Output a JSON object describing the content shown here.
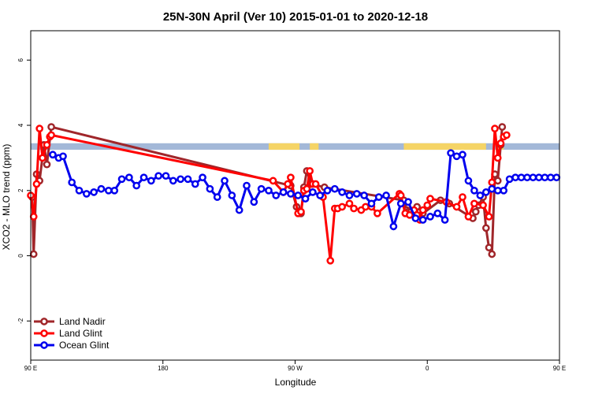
{
  "chart_data": {
    "type": "line",
    "title": "25N-30N April (Ver 10)   2015-01-01 to 2020-12-18",
    "xlabel": "Longitude",
    "ylabel": "XCO2 - MLO trend (ppm)",
    "xlim": [
      90,
      450
    ],
    "ylim": [
      -3.2,
      6.9
    ],
    "x_ticks": [
      {
        "value": 90,
        "label": "90 E"
      },
      {
        "value": 180,
        "label": "180"
      },
      {
        "value": 270,
        "label": "90 W"
      },
      {
        "value": 360,
        "label": "0"
      },
      {
        "value": 450,
        "label": "90 E"
      },
      {
        "value": 540,
        "label": "180"
      }
    ],
    "y_ticks": [
      {
        "value": -2,
        "label": "-2"
      },
      {
        "value": 0,
        "label": "0"
      },
      {
        "value": 2,
        "label": "2"
      },
      {
        "value": 4,
        "label": "4"
      },
      {
        "value": 6,
        "label": "6"
      }
    ],
    "land_band": {
      "y_range": [
        3.25,
        3.45
      ],
      "ocean_color": "#a3b8d8",
      "land_color": "#f5d466",
      "land_segments": [
        [
          252,
          273
        ],
        [
          280,
          286
        ],
        [
          344,
          400
        ],
        [
          408,
          412
        ],
        [
          477,
          490
        ],
        [
          493,
          497
        ]
      ]
    },
    "legend_position": "bottom-left",
    "series": [
      {
        "name": "Land Nadir",
        "color": "#a0262a",
        "x": [
          91,
          92,
          94,
          96,
          99,
          101,
          104,
          267,
          271,
          274,
          276,
          278,
          281,
          290,
          344,
          346,
          347,
          349,
          353,
          355,
          357,
          369,
          375,
          391,
          393,
          395,
          398,
          400,
          402,
          404,
          406,
          408,
          410,
          411
        ],
        "values": [
          1.8,
          0.05,
          2.5,
          2.3,
          3.4,
          2.8,
          3.95,
          2.15,
          1.5,
          1.3,
          2.1,
          2.6,
          2.2,
          2.1,
          1.7,
          1.4,
          1.35,
          1.35,
          1.5,
          1.35,
          1.3,
          1.7,
          1.6,
          1.15,
          1.35,
          1.55,
          1.8,
          0.85,
          0.25,
          0.05,
          2.5,
          2.3,
          3.4,
          3.95
        ]
      },
      {
        "name": "Land Glint",
        "color": "#ff0000",
        "x": [
          90,
          92,
          94,
          96,
          98,
          101,
          103,
          104,
          255,
          262,
          265,
          267,
          272,
          274,
          276,
          278,
          280,
          282,
          284,
          289,
          294,
          297,
          299,
          302,
          307,
          310,
          315,
          318,
          322,
          326,
          341,
          342,
          345,
          348,
          351,
          353,
          355,
          357,
          360,
          362,
          373,
          380,
          384,
          388,
          392,
          398,
          402,
          404,
          406,
          408,
          410,
          412,
          414
        ],
        "values": [
          1.85,
          1.2,
          2.2,
          3.9,
          3.0,
          3.4,
          3.65,
          3.7,
          2.3,
          1.95,
          2.2,
          2.4,
          1.3,
          1.35,
          2.0,
          2.05,
          2.6,
          2.2,
          2.2,
          1.8,
          -0.15,
          1.45,
          1.45,
          1.5,
          1.6,
          1.45,
          1.4,
          1.5,
          1.5,
          1.3,
          1.9,
          1.85,
          1.3,
          1.25,
          1.4,
          1.25,
          1.1,
          1.4,
          1.55,
          1.75,
          1.65,
          1.5,
          1.8,
          1.2,
          1.6,
          1.55,
          1.2,
          2.25,
          3.9,
          3.0,
          3.45,
          3.65,
          3.7
        ]
      },
      {
        "name": "Ocean Glint",
        "color": "#0000ee",
        "x": [
          105,
          109,
          112,
          118,
          123,
          128,
          133,
          138,
          143,
          147,
          152,
          157,
          162,
          167,
          172,
          177,
          182,
          187,
          192,
          197,
          202,
          207,
          212,
          217,
          222,
          227,
          232,
          237,
          242,
          247,
          252,
          257,
          262,
          267,
          272,
          277,
          282,
          287,
          292,
          297,
          302,
          307,
          312,
          317,
          322,
          327,
          332,
          337,
          342,
          347,
          352,
          357,
          362,
          367,
          372,
          376,
          380,
          384,
          388,
          392,
          396,
          400,
          404,
          408,
          412,
          416,
          420,
          424,
          428,
          432,
          436,
          440,
          444,
          448
        ],
        "values": [
          3.1,
          3.0,
          3.05,
          2.25,
          2.0,
          1.9,
          1.95,
          2.05,
          2.0,
          2.0,
          2.35,
          2.4,
          2.15,
          2.4,
          2.3,
          2.45,
          2.45,
          2.3,
          2.35,
          2.35,
          2.2,
          2.4,
          2.05,
          1.8,
          2.3,
          1.85,
          1.4,
          2.15,
          1.65,
          2.05,
          2.0,
          1.85,
          1.95,
          1.9,
          1.85,
          1.75,
          1.95,
          1.85,
          2.0,
          2.05,
          1.95,
          1.85,
          1.9,
          1.85,
          1.6,
          1.8,
          1.85,
          0.9,
          1.6,
          1.65,
          1.15,
          1.1,
          1.2,
          1.3,
          1.1,
          3.15,
          3.05,
          3.1,
          2.3,
          2.0,
          1.85,
          1.95,
          2.05,
          2.0,
          2.0,
          2.35,
          2.4,
          2.4,
          2.4,
          2.4,
          2.4,
          2.4,
          2.4,
          2.4
        ]
      }
    ]
  }
}
